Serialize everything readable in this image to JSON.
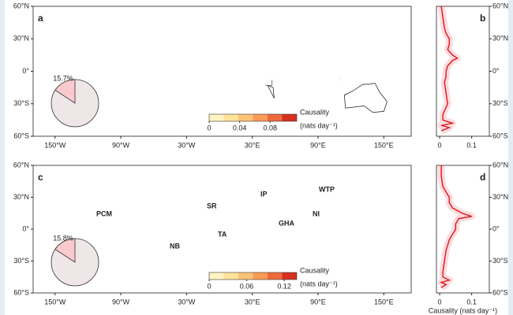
{
  "chart_data": [
    {
      "type": "map",
      "panel_label": "a",
      "xlim": [
        -170,
        175
      ],
      "ylim": [
        -60,
        60
      ],
      "xticks": [
        {
          "value": -150,
          "label": "150°W"
        },
        {
          "value": -90,
          "label": "90°W"
        },
        {
          "value": -30,
          "label": "30°W"
        },
        {
          "value": 30,
          "label": "30°E"
        },
        {
          "value": 90,
          "label": "90°E"
        },
        {
          "value": 150,
          "label": "150°E"
        }
      ],
      "yticks": [
        {
          "value": 60,
          "label": "60°N"
        },
        {
          "value": 30,
          "label": "30°N"
        },
        {
          "value": 0,
          "label": "0°"
        },
        {
          "value": -30,
          "label": "30°S"
        },
        {
          "value": -60,
          "label": "60°S"
        }
      ],
      "pie": {
        "values": [
          15.7
        ],
        "value_labels": [
          "15.7%"
        ],
        "colors": [
          "#f9c9cd",
          "#efe6e8"
        ]
      },
      "colorbar": {
        "title": "Causality",
        "unit": "(nats day⁻¹)",
        "lim": [
          0,
          0.115
        ],
        "ticks": [
          0,
          0.04,
          0.08
        ],
        "colors": [
          "#fff4c2",
          "#fee39b",
          "#fdc475",
          "#f99c55",
          "#ef6a3c",
          "#d7301f"
        ]
      }
    },
    {
      "type": "line",
      "panel_label": "b",
      "xlim": [
        -0.01,
        0.155
      ],
      "ylim": [
        -60,
        60
      ],
      "xticks": [
        0,
        0.1
      ],
      "yticks": [
        {
          "value": 60,
          "label": "60°N"
        },
        {
          "value": 30,
          "label": "30°N"
        },
        {
          "value": 0,
          "label": "0°"
        },
        {
          "value": -30,
          "label": "30°S"
        },
        {
          "value": -60,
          "label": "60°S"
        }
      ],
      "y": [
        60,
        50,
        40,
        35,
        30,
        25,
        20,
        15,
        12,
        10,
        5,
        0,
        -5,
        -10,
        -20,
        -30,
        -40,
        -45,
        -48,
        -50,
        -52,
        -55
      ],
      "values": [
        0.005,
        0.01,
        0.015,
        0.02,
        0.03,
        0.03,
        0.025,
        0.04,
        0.055,
        0.04,
        0.025,
        0.02,
        0.02,
        0.015,
        0.02,
        0.025,
        0.01,
        0.01,
        0.04,
        0.005,
        0.03,
        0.005
      ],
      "color": "#e0141e"
    },
    {
      "type": "map",
      "panel_label": "c",
      "xlim": [
        -170,
        175
      ],
      "ylim": [
        -60,
        60
      ],
      "xticks": [
        {
          "value": -150,
          "label": "150°W"
        },
        {
          "value": -90,
          "label": "90°W"
        },
        {
          "value": -30,
          "label": "30°W"
        },
        {
          "value": 30,
          "label": "30°E"
        },
        {
          "value": 90,
          "label": "90°E"
        },
        {
          "value": 150,
          "label": "150°E"
        }
      ],
      "yticks": [
        {
          "value": 60,
          "label": "60°N"
        },
        {
          "value": 30,
          "label": "30°N"
        },
        {
          "value": 0,
          "label": "0°"
        },
        {
          "value": -30,
          "label": "30°S"
        },
        {
          "value": -60,
          "label": "60°S"
        }
      ],
      "pie": {
        "values": [
          15.8
        ],
        "value_labels": [
          "15.8%"
        ],
        "colors": [
          "#f9c9cd",
          "#efe6e8"
        ]
      },
      "colorbar": {
        "title": "Causality",
        "unit": "(nats day⁻¹)",
        "lim": [
          0,
          0.14
        ],
        "ticks": [
          0,
          0.06,
          0.12
        ],
        "colors": [
          "#fff4c2",
          "#fee39b",
          "#fdc475",
          "#f99c55",
          "#ef6a3c",
          "#d7301f"
        ]
      },
      "region_labels": [
        "PCM",
        "NB",
        "SR",
        "TA",
        "GHA",
        "IP",
        "WTP",
        "NI"
      ]
    },
    {
      "type": "line",
      "panel_label": "d",
      "xlim": [
        -0.01,
        0.155
      ],
      "ylim": [
        -60,
        60
      ],
      "xticks": [
        0,
        0.1
      ],
      "yticks": [
        {
          "value": 60,
          "label": "60°N"
        },
        {
          "value": 30,
          "label": "30°N"
        },
        {
          "value": 0,
          "label": "0°"
        },
        {
          "value": -30,
          "label": "30°S"
        },
        {
          "value": -60,
          "label": "60°S"
        }
      ],
      "y": [
        60,
        50,
        40,
        35,
        30,
        25,
        20,
        15,
        12,
        10,
        5,
        0,
        -5,
        -10,
        -20,
        -30,
        -40,
        -45,
        -48,
        -50,
        -52,
        -55
      ],
      "values": [
        0.005,
        0.005,
        0.01,
        0.02,
        0.03,
        0.03,
        0.04,
        0.07,
        0.1,
        0.06,
        0.05,
        0.05,
        0.04,
        0.03,
        0.02,
        0.015,
        0.01,
        0.01,
        0.03,
        0.005,
        0.02,
        0.005
      ],
      "color": "#e0141e",
      "x_label": "Causality (nats day⁻¹)"
    }
  ]
}
